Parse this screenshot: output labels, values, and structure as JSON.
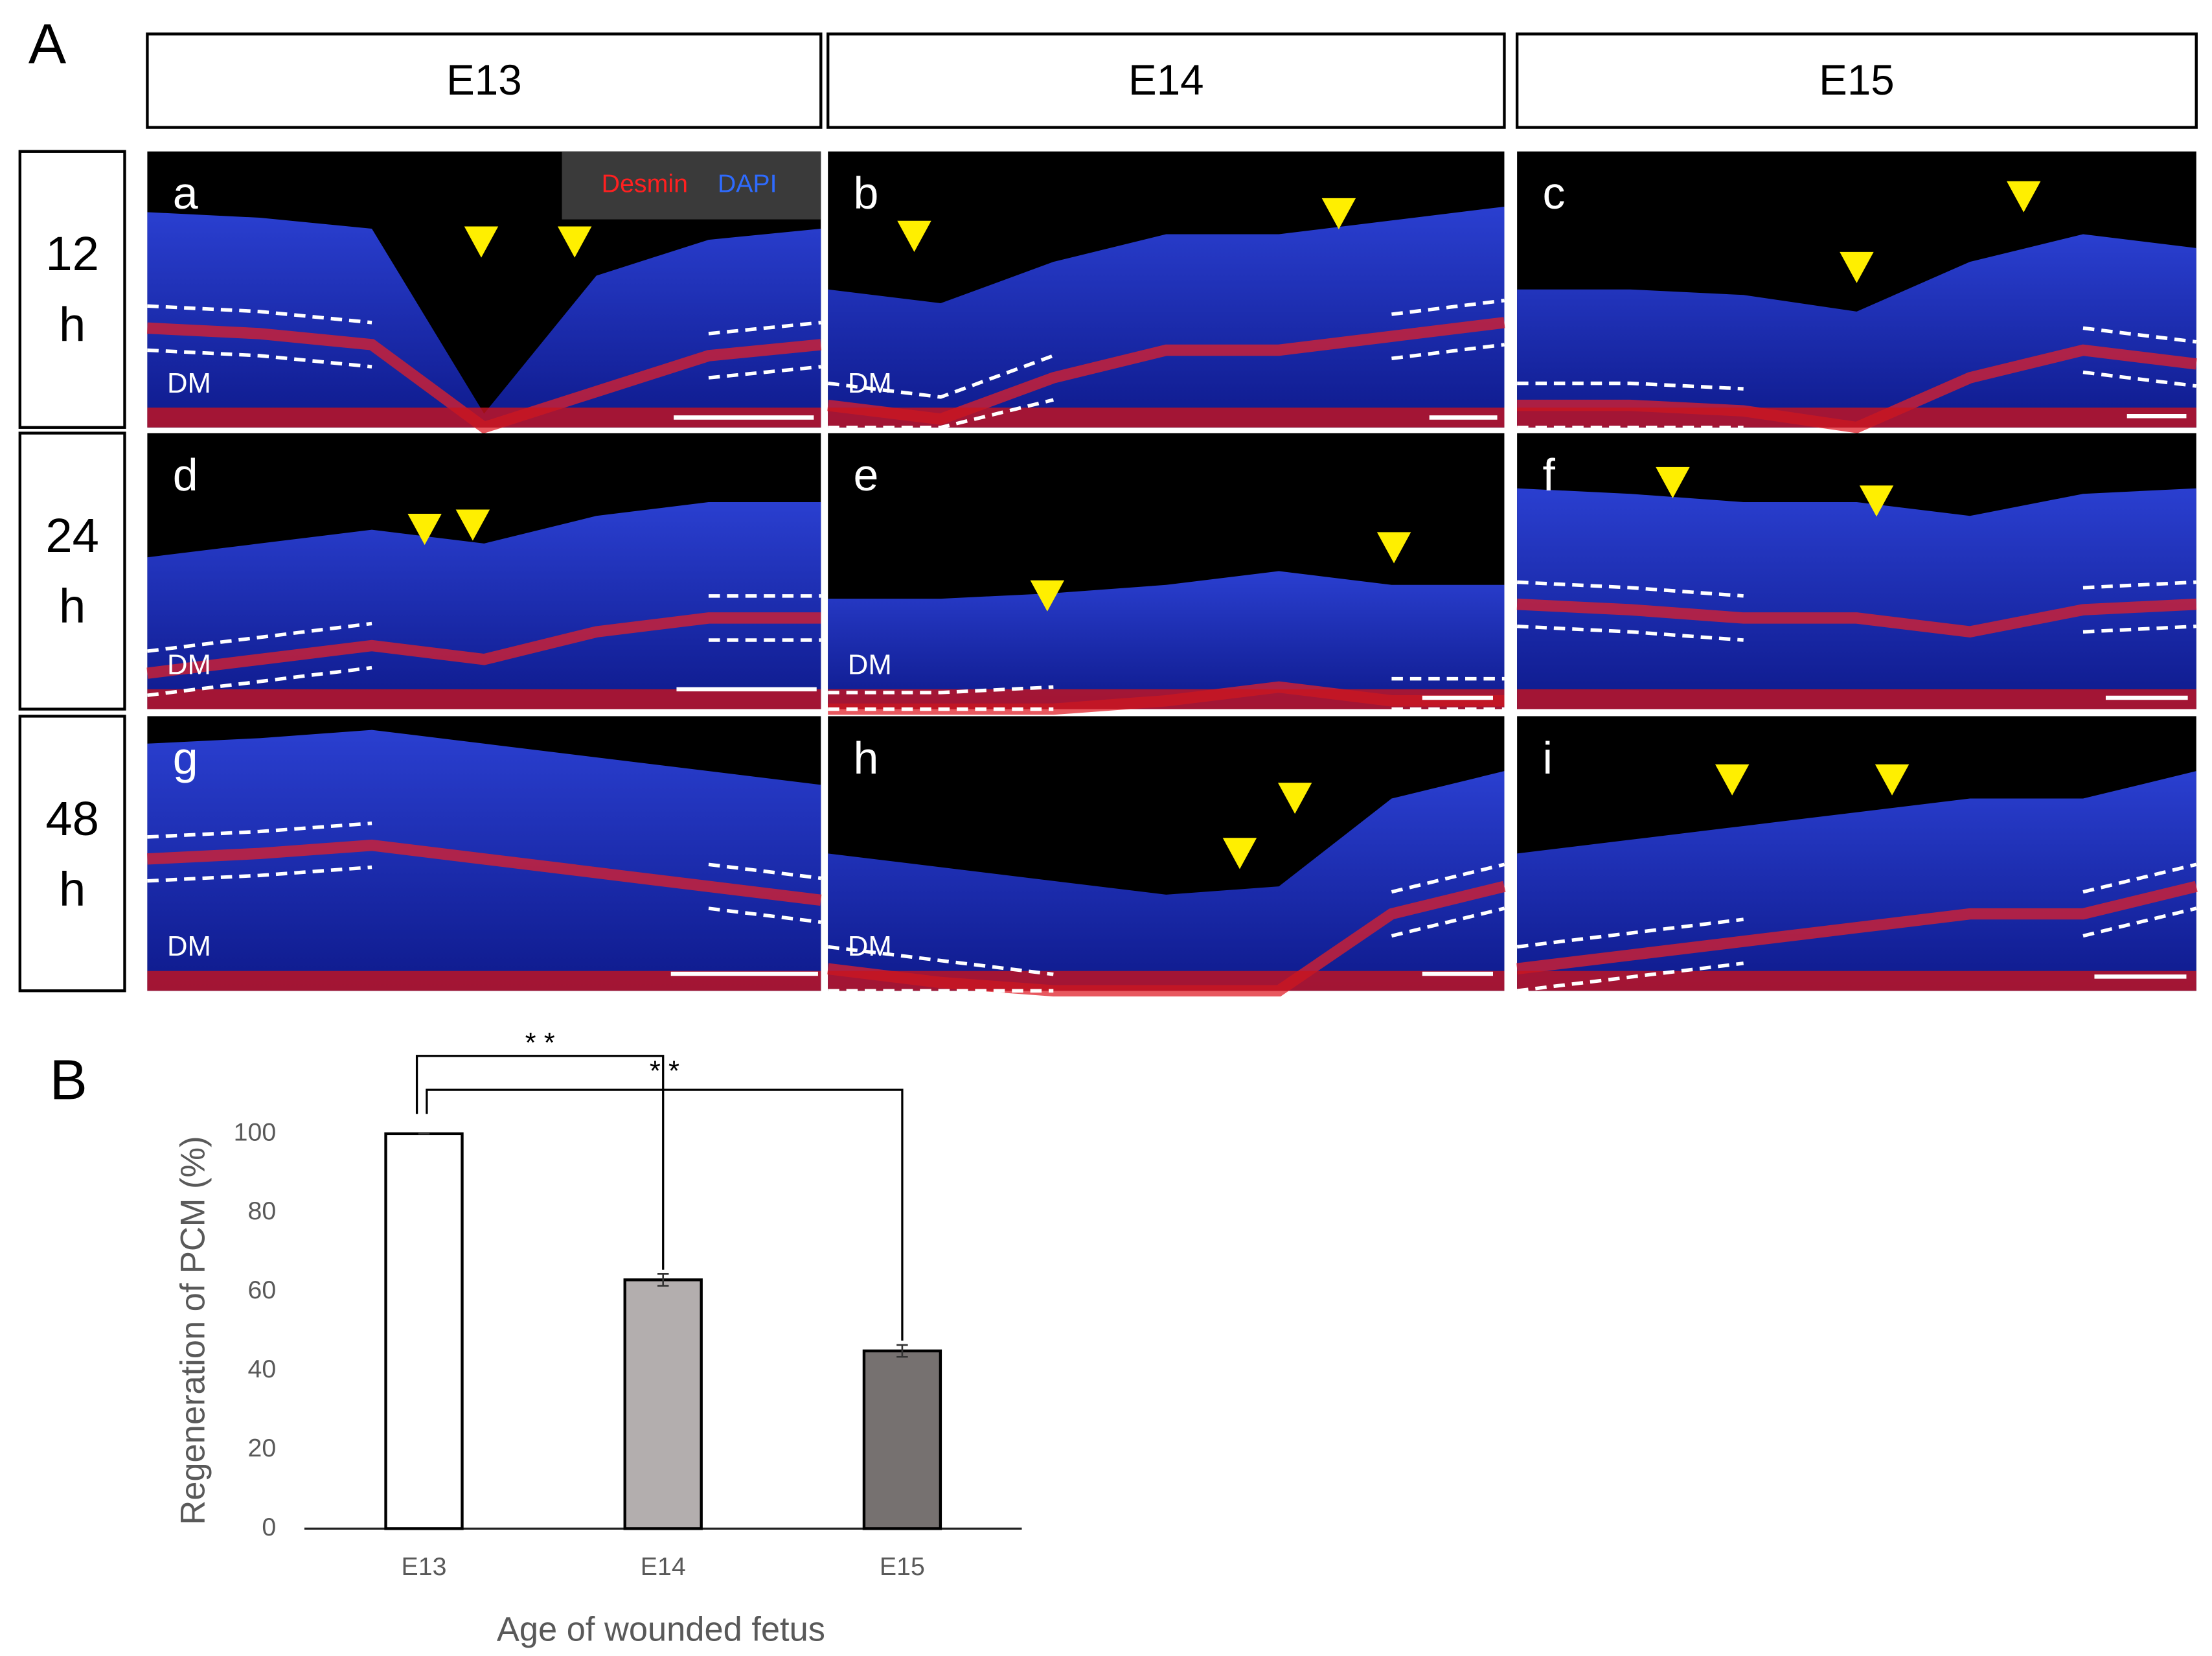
{
  "panel_a": {
    "label": "A",
    "columns": [
      "E13",
      "E14",
      "E15"
    ],
    "rows": [
      {
        "time": "12",
        "unit": "h"
      },
      {
        "time": "24",
        "unit": "h"
      },
      {
        "time": "48",
        "unit": "h"
      }
    ],
    "legend": [
      "Desmin",
      "DAPI"
    ],
    "panels": [
      {
        "letter": "a",
        "label": "DM"
      },
      {
        "letter": "b",
        "label": "DM"
      },
      {
        "letter": "c"
      },
      {
        "letter": "d",
        "label": "DM"
      },
      {
        "letter": "e",
        "label": "DM"
      },
      {
        "letter": "f"
      },
      {
        "letter": "g",
        "label": "DM"
      },
      {
        "letter": "h",
        "label": "DM"
      },
      {
        "letter": "i"
      }
    ]
  },
  "chart_data": {
    "type": "bar",
    "panel_label": "B",
    "categories": [
      "E13",
      "E14",
      "E15"
    ],
    "values": [
      100,
      63,
      45
    ],
    "errors": [
      0,
      1.5,
      1.5
    ],
    "colors": [
      "#ffffff",
      "#b3aeae",
      "#767170"
    ],
    "ylabel": "Regeneration of PCM (%)",
    "xlabel": "Age of wounded fetus",
    "ylim": [
      0,
      100
    ],
    "yticks": [
      0,
      20,
      40,
      60,
      80,
      100
    ],
    "annotations": [
      "* *",
      "* *"
    ]
  }
}
